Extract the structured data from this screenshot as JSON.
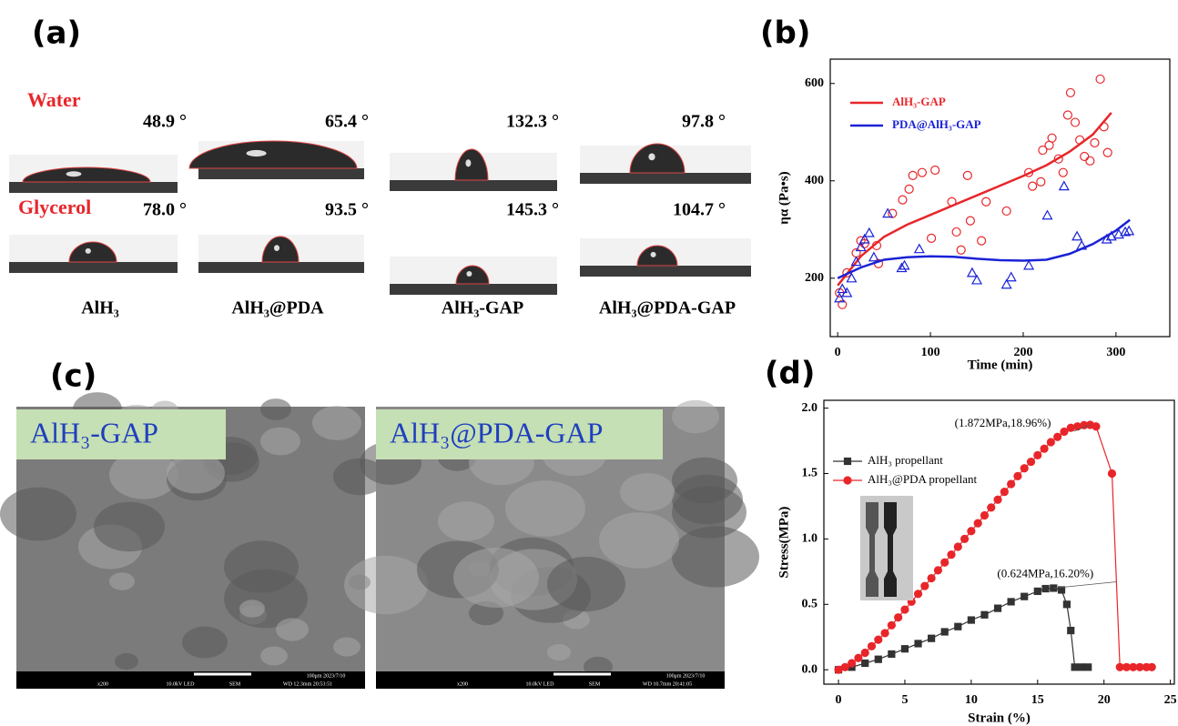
{
  "panel_labels": [
    "(a)",
    "(b)",
    "(c)",
    "(d)"
  ],
  "contact_angle": {
    "liquids": [
      "Water",
      "Glycerol"
    ],
    "samples": [
      "AlH₃",
      "AlH₃@PDA",
      "AlH₃-GAP",
      "AlH₃@PDA-GAP"
    ],
    "angles": [
      [
        "48.9 °",
        "65.4 °",
        "132.3 °",
        "97.8 °"
      ],
      [
        "78.0 °",
        "93.5 °",
        "145.3 °",
        "104.7 °"
      ]
    ]
  },
  "sem": {
    "images": [
      {
        "label": "AlH₃-GAP",
        "footer": [
          "x200",
          "10.0kV LED",
          "SEM",
          "100μm 2023/7/10",
          "WD 12.3mm 20:53:51"
        ]
      },
      {
        "label": "AlH₃@PDA-GAP",
        "footer": [
          "x200",
          "10.0kV LED",
          "SEM",
          "100μm 2023/7/10",
          "WD 10.7mm 20:41:05"
        ]
      }
    ]
  },
  "chart_data": [
    {
      "type": "scatter",
      "x_label": "Time (min)",
      "y_label": "ηα (Pa•s)",
      "xlim": [
        -8,
        358
      ],
      "ylim": [
        80,
        650
      ],
      "xticks": [
        0,
        100,
        200,
        300
      ],
      "yticks": [
        200,
        400,
        600
      ],
      "legend": "upper left",
      "series": [
        {
          "name": "AlH₃-GAP",
          "color": "#e8262a",
          "marker": "circle",
          "x": [
            5,
            2,
            10,
            20,
            25,
            29,
            42,
            44,
            59,
            70,
            77,
            81,
            91,
            105,
            101,
            123,
            128,
            133,
            140,
            143,
            155,
            160,
            182,
            206,
            210,
            219,
            221,
            228,
            231,
            238,
            243,
            248,
            251,
            256,
            261,
            266,
            272,
            277,
            283,
            287,
            291
          ],
          "values": [
            146,
            170,
            211,
            252,
            277,
            271,
            267,
            230,
            333,
            361,
            383,
            411,
            417,
            422,
            282,
            357,
            295,
            258,
            411,
            318,
            277,
            357,
            338,
            417,
            389,
            398,
            463,
            473,
            488,
            445,
            417,
            535,
            581,
            520,
            484,
            450,
            441,
            478,
            609,
            511,
            458
          ],
          "fit_x": [
            0,
            25,
            50,
            75,
            100,
            125,
            150,
            175,
            200,
            225,
            250,
            275,
            295
          ],
          "fit_values": [
            185,
            245,
            285,
            310,
            330,
            350,
            370,
            390,
            410,
            432,
            460,
            495,
            540
          ]
        },
        {
          "name": "PDA@AlH₃-GAP",
          "color": "#1a22d6",
          "marker": "triangle",
          "x": [
            2,
            5,
            10,
            15,
            20,
            25,
            29,
            34,
            39,
            54,
            69,
            72,
            88,
            145,
            150,
            182,
            187,
            206,
            226,
            244,
            258,
            263,
            290,
            295,
            303,
            310,
            314
          ],
          "values": [
            159,
            178,
            170,
            200,
            234,
            264,
            280,
            293,
            243,
            333,
            221,
            226,
            260,
            211,
            196,
            187,
            202,
            226,
            329,
            389,
            286,
            267,
            280,
            286,
            290,
            295,
            297
          ],
          "fit_x": [
            0,
            25,
            50,
            75,
            100,
            125,
            150,
            175,
            200,
            225,
            250,
            275,
            300,
            315
          ],
          "fit_values": [
            200,
            222,
            238,
            243,
            245,
            244,
            240,
            237,
            236,
            238,
            250,
            270,
            298,
            320
          ]
        }
      ]
    },
    {
      "type": "line",
      "x_label": "Strain (%)",
      "y_label": "Stress(MPa)",
      "xlim": [
        -1.1,
        25.3
      ],
      "ylim": [
        -0.11,
        2.06
      ],
      "xticks": [
        0,
        5,
        10,
        15,
        20,
        25
      ],
      "yticks": [
        {
          "value": 0,
          "label": "0.0"
        },
        {
          "value": 0.5,
          "label": "0.5"
        },
        {
          "value": 1,
          "label": "1.0"
        },
        {
          "value": 1.5,
          "label": "1.5"
        },
        {
          "value": 2,
          "label": "2.0"
        }
      ],
      "legend": "upper left",
      "series": [
        {
          "name": "AlH₃ propellant",
          "color": "#333333",
          "marker": "square",
          "x": [
            0,
            1,
            2,
            3,
            4,
            5,
            6,
            7,
            8,
            9,
            10,
            11,
            12,
            13,
            14,
            15,
            15.6,
            16.2,
            16.8,
            17.2,
            17.5,
            17.8,
            18.3,
            18.8
          ],
          "values": [
            0,
            0.02,
            0.05,
            0.08,
            0.12,
            0.16,
            0.2,
            0.24,
            0.29,
            0.33,
            0.38,
            0.42,
            0.47,
            0.52,
            0.56,
            0.6,
            0.62,
            0.624,
            0.61,
            0.5,
            0.3,
            0.02,
            0.02,
            0.02
          ],
          "annotation": "(0.624MPa,16.20%)"
        },
        {
          "name": "AlH₃@PDA propellant",
          "color": "#e8262a",
          "marker": "circle",
          "x": [
            0,
            0.5,
            1,
            1.5,
            2,
            2.5,
            3,
            3.5,
            4,
            4.5,
            5,
            5.5,
            6,
            6.5,
            7,
            7.5,
            8,
            8.5,
            9,
            9.5,
            10,
            10.5,
            11,
            11.5,
            12,
            12.5,
            13,
            13.5,
            14,
            14.5,
            15,
            15.5,
            16,
            16.5,
            17,
            17.5,
            18,
            18.5,
            18.96,
            19.4,
            20.6,
            21.2,
            21.7,
            22.2,
            22.7,
            23.2,
            23.6
          ],
          "values": [
            0,
            0.02,
            0.05,
            0.09,
            0.13,
            0.18,
            0.23,
            0.28,
            0.34,
            0.4,
            0.46,
            0.52,
            0.58,
            0.64,
            0.7,
            0.76,
            0.82,
            0.88,
            0.94,
            1,
            1.06,
            1.12,
            1.18,
            1.24,
            1.3,
            1.36,
            1.42,
            1.48,
            1.54,
            1.59,
            1.64,
            1.69,
            1.74,
            1.78,
            1.82,
            1.85,
            1.86,
            1.87,
            1.872,
            1.86,
            1.5,
            0.02,
            0.02,
            0.02,
            0.02,
            0.02,
            0.02
          ],
          "annotation": "(1.872MPa,18.96%)"
        }
      ]
    }
  ]
}
